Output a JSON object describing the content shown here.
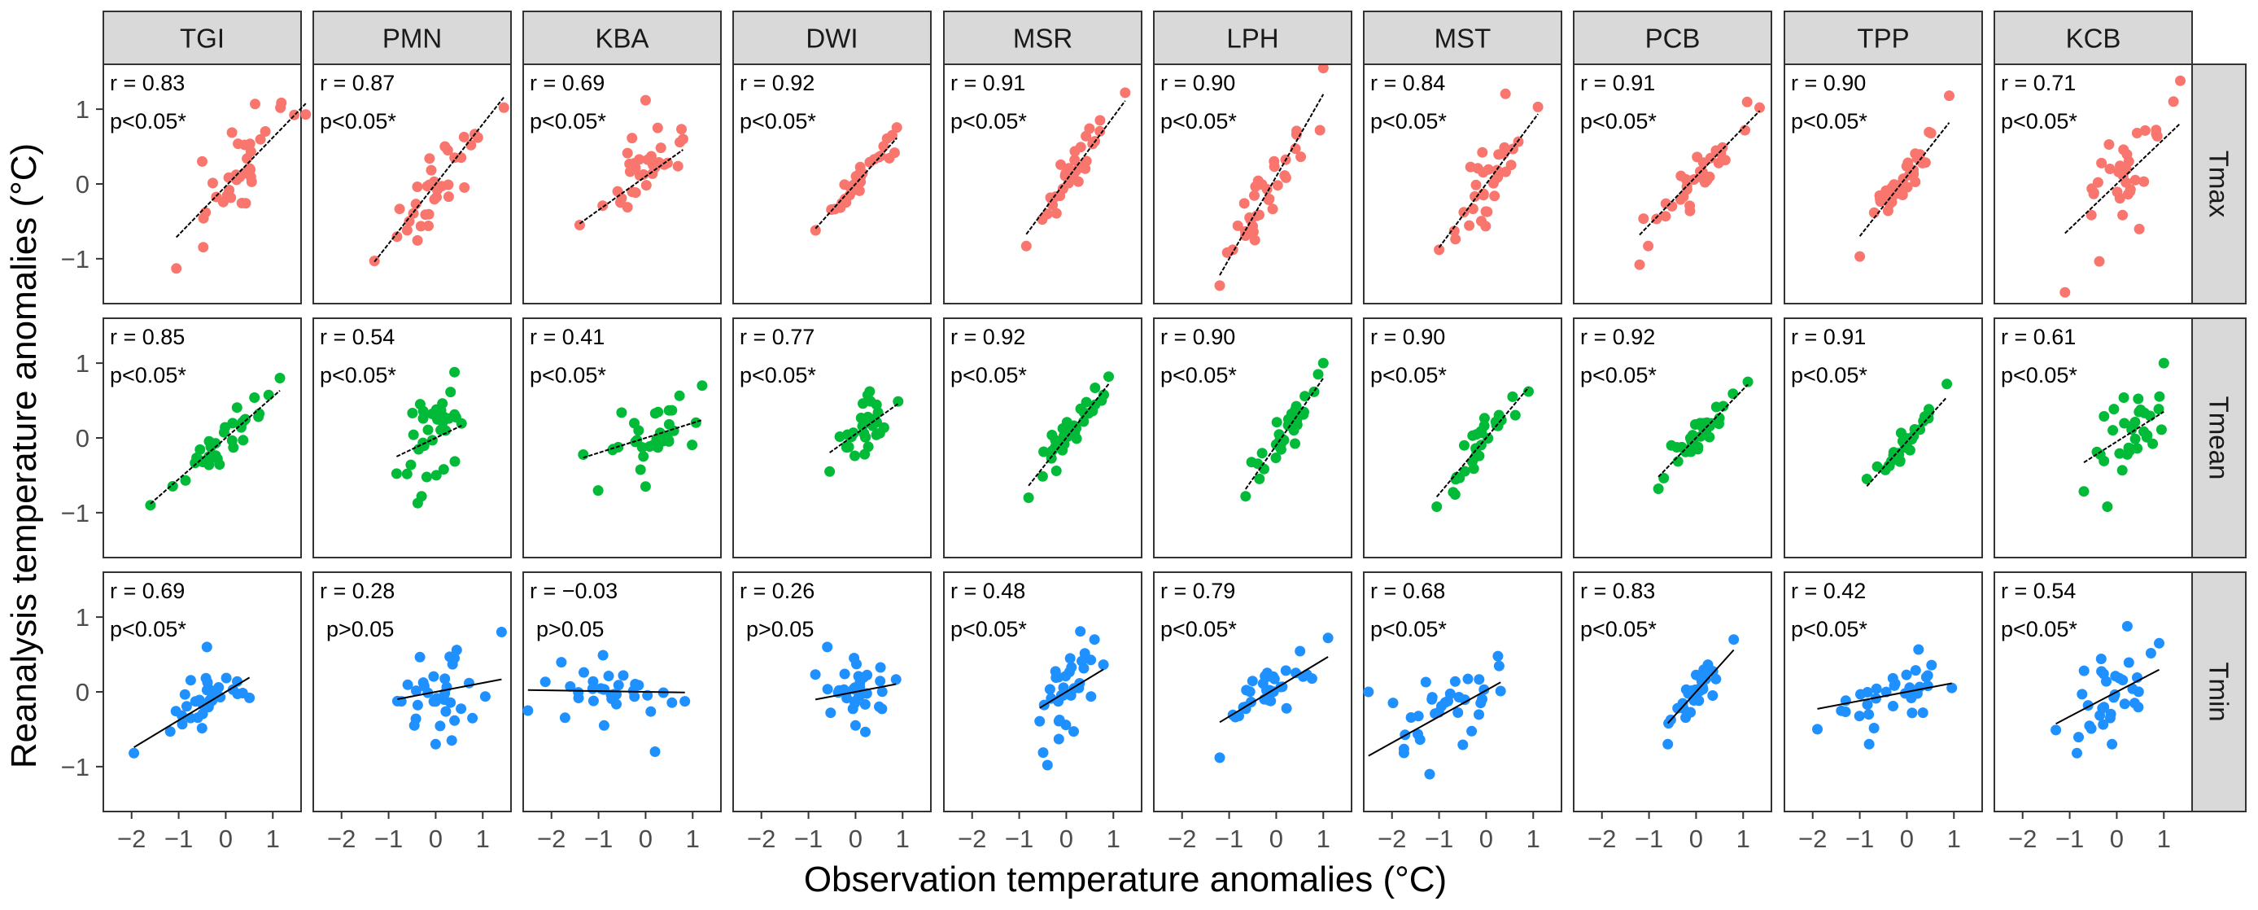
{
  "chart_data": {
    "type": "scatter",
    "title": "",
    "xlabel": "Observation temperature anomalies (°C)",
    "ylabel": "Reanalysis temperature anomalies (°C)",
    "xlim": [
      -2.6,
      1.6
    ],
    "ylim": [
      -1.6,
      1.6
    ],
    "x_ticks": [
      -2,
      -1,
      0,
      1
    ],
    "y_ticks": [
      -1,
      0,
      1
    ],
    "x_tick_labels": [
      "−2",
      "−1",
      "0",
      "1"
    ],
    "y_tick_labels": [
      "−1",
      "0",
      "1"
    ],
    "grid": false,
    "legend": "none",
    "stations": [
      "TGI",
      "PMN",
      "KBA",
      "DWI",
      "MSR",
      "LPH",
      "MST",
      "PCB",
      "TPP",
      "KCB"
    ],
    "variables": [
      {
        "name": "Tmax",
        "color": "#F8766D"
      },
      {
        "name": "Tmean",
        "color": "#00BA38"
      },
      {
        "name": "Tmin",
        "color": "#1E90FF"
      }
    ],
    "panels": [
      [
        {
          "r": "r = 0.83",
          "p": "p<0.05*",
          "x_range": [
            -1.0,
            1.7
          ],
          "slope": 0.65,
          "intercept": -0.03,
          "n": 32,
          "spread": 0.27,
          "seed": 101,
          "extra": [
            [
              -1.05,
              -1.13
            ],
            [
              1.7,
              0.93
            ],
            [
              -0.5,
              0.3
            ]
          ]
        },
        {
          "r": "r = 0.87",
          "p": "p<0.05*",
          "x_range": [
            -1.3,
            1.4
          ],
          "slope": 0.8,
          "intercept": 0.0,
          "n": 32,
          "spread": 0.23,
          "seed": 102,
          "extra": [
            [
              -1.3,
              -1.03
            ],
            [
              1.45,
              1.02
            ]
          ]
        },
        {
          "r": "r = 0.69",
          "p": "p<0.05*",
          "x_range": [
            -1.5,
            1.3
          ],
          "slope": 0.45,
          "intercept": 0.1,
          "n": 32,
          "spread": 0.27,
          "seed": 103,
          "extra": [
            [
              0.0,
              1.12
            ],
            [
              -1.4,
              -0.55
            ]
          ]
        },
        {
          "r": "r = 0.92",
          "p": "p<0.05*",
          "x_range": [
            -0.9,
            1.1
          ],
          "slope": 0.7,
          "intercept": 0.0,
          "n": 32,
          "spread": 0.12,
          "seed": 104,
          "extra": [
            [
              -0.85,
              -0.62
            ]
          ]
        },
        {
          "r": "r = 0.91",
          "p": "p<0.05*",
          "x_range": [
            -0.9,
            1.2
          ],
          "slope": 0.85,
          "intercept": 0.05,
          "n": 32,
          "spread": 0.16,
          "seed": 105,
          "extra": [
            [
              1.25,
              1.22
            ],
            [
              -0.85,
              -0.83
            ]
          ]
        },
        {
          "r": "r = 0.90",
          "p": "p<0.05*",
          "x_range": [
            -1.3,
            1.1
          ],
          "slope": 1.1,
          "intercept": 0.1,
          "n": 32,
          "spread": 0.25,
          "seed": 106,
          "extra": [
            [
              1.0,
              1.55
            ],
            [
              -1.2,
              -1.36
            ]
          ]
        },
        {
          "r": "r = 0.84",
          "p": "p<0.05*",
          "x_range": [
            -1.0,
            1.1
          ],
          "slope": 0.85,
          "intercept": 0.0,
          "n": 32,
          "spread": 0.25,
          "seed": 107,
          "extra": [
            [
              -1.0,
              -0.88
            ],
            [
              1.1,
              1.03
            ]
          ]
        },
        {
          "r": "r = 0.91",
          "p": "p<0.05*",
          "x_range": [
            -1.3,
            1.3
          ],
          "slope": 0.65,
          "intercept": 0.1,
          "n": 32,
          "spread": 0.16,
          "seed": 108,
          "extra": [
            [
              -1.2,
              -1.08
            ],
            [
              1.35,
              1.02
            ]
          ]
        },
        {
          "r": "r = 0.90",
          "p": "p<0.05*",
          "x_range": [
            -1.1,
            1.1
          ],
          "slope": 0.8,
          "intercept": 0.1,
          "n": 32,
          "spread": 0.2,
          "seed": 109,
          "extra": [
            [
              -1.0,
              -0.97
            ],
            [
              0.9,
              1.18
            ]
          ]
        },
        {
          "r": "r = 0.71",
          "p": "p<0.05*",
          "x_range": [
            -1.1,
            1.4
          ],
          "slope": 0.6,
          "intercept": 0.0,
          "n": 32,
          "spread": 0.35,
          "seed": 110,
          "extra": [
            [
              -1.1,
              -1.45
            ],
            [
              1.35,
              1.38
            ]
          ]
        }
      ],
      [
        {
          "r": "r = 0.85",
          "p": "p<0.05*",
          "x_range": [
            -1.5,
            1.2
          ],
          "slope": 0.55,
          "intercept": 0.0,
          "n": 32,
          "spread": 0.14,
          "seed": 201,
          "extra": [
            [
              -1.6,
              -0.9
            ],
            [
              1.15,
              0.8
            ]
          ]
        },
        {
          "r": "r = 0.54",
          "p": "p<0.05*",
          "x_range": [
            -1.2,
            1.3
          ],
          "slope": 0.3,
          "intercept": 0.0,
          "n": 32,
          "spread": 0.28,
          "seed": 202,
          "extra": [
            [
              -0.3,
              -0.78
            ],
            [
              0.4,
              0.88
            ]
          ]
        },
        {
          "r": "r = 0.41",
          "p": "p<0.05*",
          "x_range": [
            -1.5,
            1.4
          ],
          "slope": 0.2,
          "intercept": 0.0,
          "n": 32,
          "spread": 0.22,
          "seed": 203,
          "extra": [
            [
              0.0,
              -0.65
            ],
            [
              1.2,
              0.7
            ]
          ]
        },
        {
          "r": "r = 0.77",
          "p": "p<0.05*",
          "x_range": [
            -0.8,
            1.1
          ],
          "slope": 0.45,
          "intercept": 0.05,
          "n": 32,
          "spread": 0.14,
          "seed": 204,
          "extra": [
            [
              0.3,
              0.62
            ],
            [
              -0.55,
              -0.45
            ]
          ]
        },
        {
          "r": "r = 0.92",
          "p": "p<0.05*",
          "x_range": [
            -0.9,
            1.1
          ],
          "slope": 0.8,
          "intercept": 0.0,
          "n": 32,
          "spread": 0.12,
          "seed": 205,
          "extra": [
            [
              -0.8,
              -0.8
            ],
            [
              0.9,
              0.82
            ]
          ]
        },
        {
          "r": "r = 0.90",
          "p": "p<0.05*",
          "x_range": [
            -0.7,
            1.1
          ],
          "slope": 0.9,
          "intercept": -0.1,
          "n": 36,
          "spread": 0.12,
          "seed": 206,
          "extra": [
            [
              1.0,
              1.0
            ],
            [
              -0.65,
              -0.78
            ]
          ]
        },
        {
          "r": "r = 0.90",
          "p": "p<0.05*",
          "x_range": [
            -1.1,
            1.0
          ],
          "slope": 0.75,
          "intercept": 0.0,
          "n": 32,
          "spread": 0.13,
          "seed": 207,
          "extra": [
            [
              -1.05,
              -0.92
            ],
            [
              0.9,
              0.62
            ]
          ]
        },
        {
          "r": "r = 0.92",
          "p": "p<0.05*",
          "x_range": [
            -0.9,
            1.2
          ],
          "slope": 0.65,
          "intercept": 0.0,
          "n": 32,
          "spread": 0.1,
          "seed": 208,
          "extra": [
            [
              -0.8,
              -0.68
            ],
            [
              1.1,
              0.75
            ]
          ]
        },
        {
          "r": "r = 0.91",
          "p": "p<0.05*",
          "x_range": [
            -0.9,
            0.9
          ],
          "slope": 0.7,
          "intercept": -0.05,
          "n": 32,
          "spread": 0.1,
          "seed": 209,
          "extra": [
            [
              -0.85,
              -0.55
            ],
            [
              0.85,
              0.72
            ]
          ]
        },
        {
          "r": "r = 0.61",
          "p": "p<0.05*",
          "x_range": [
            -0.9,
            1.4
          ],
          "slope": 0.4,
          "intercept": -0.05,
          "n": 32,
          "spread": 0.26,
          "seed": 210,
          "extra": [
            [
              -0.2,
              -0.92
            ],
            [
              1.0,
              1.0
            ]
          ]
        }
      ],
      [
        {
          "r": "r = 0.69",
          "p": "p<0.05*",
          "x_range": [
            -2.0,
            1.0
          ],
          "slope": 0.38,
          "intercept": 0.0,
          "n": 32,
          "spread": 0.18,
          "seed": 301,
          "extra": [
            [
              -1.95,
              -0.82
            ],
            [
              -0.4,
              0.6
            ]
          ]
        },
        {
          "r": "r = 0.28",
          "p": "p>0.05",
          "x_range": [
            -1.6,
            1.4
          ],
          "slope": 0.12,
          "intercept": 0.0,
          "n": 32,
          "spread": 0.28,
          "seed": 302,
          "extra": [
            [
              1.4,
              0.8
            ],
            [
              0.0,
              -0.7
            ]
          ]
        },
        {
          "r": "r = −0.03",
          "p": "p>0.05",
          "x_range": [
            -2.6,
            1.4
          ],
          "slope": -0.01,
          "intercept": 0.0,
          "n": 32,
          "spread": 0.22,
          "seed": 303,
          "extra": [
            [
              -2.5,
              -0.25
            ],
            [
              0.2,
              -0.8
            ]
          ]
        },
        {
          "r": "r = 0.26",
          "p": "p>0.05",
          "x_range": [
            -1.0,
            1.1
          ],
          "slope": 0.12,
          "intercept": 0.0,
          "n": 32,
          "spread": 0.2,
          "seed": 304,
          "extra": [
            [
              -0.6,
              0.6
            ],
            [
              0.0,
              -0.45
            ]
          ]
        },
        {
          "r": "r = 0.48",
          "p": "p<0.05*",
          "x_range": [
            -1.1,
            1.0
          ],
          "slope": 0.38,
          "intercept": 0.0,
          "n": 32,
          "spread": 0.3,
          "seed": 305,
          "extra": [
            [
              -0.4,
              -0.98
            ],
            [
              0.6,
              0.7
            ]
          ]
        },
        {
          "r": "r = 0.79",
          "p": "p<0.05*",
          "x_range": [
            -1.6,
            1.2
          ],
          "slope": 0.38,
          "intercept": 0.05,
          "n": 32,
          "spread": 0.18,
          "seed": 306,
          "extra": [
            [
              -1.2,
              -0.88
            ],
            [
              1.1,
              0.72
            ]
          ]
        },
        {
          "r": "r = 0.68",
          "p": "p<0.05*",
          "x_range": [
            -2.6,
            1.1
          ],
          "slope": 0.35,
          "intercept": 0.02,
          "n": 32,
          "spread": 0.2,
          "seed": 307,
          "extra": [
            [
              -2.5,
              0.0
            ],
            [
              -1.2,
              -1.1
            ]
          ]
        },
        {
          "r": "r = 0.83",
          "p": "p<0.05*",
          "x_range": [
            -0.9,
            0.8
          ],
          "slope": 0.7,
          "intercept": 0.0,
          "n": 32,
          "spread": 0.13,
          "seed": 308,
          "extra": [
            [
              0.8,
              0.7
            ],
            [
              -0.6,
              -0.7
            ]
          ]
        },
        {
          "r": "r = 0.42",
          "p": "p<0.05*",
          "x_range": [
            -1.9,
            1.2
          ],
          "slope": 0.12,
          "intercept": 0.0,
          "n": 32,
          "spread": 0.22,
          "seed": 309,
          "extra": [
            [
              -0.8,
              -0.7
            ],
            [
              -1.9,
              -0.5
            ]
          ]
        },
        {
          "r": "r = 0.54",
          "p": "p<0.05*",
          "x_range": [
            -1.5,
            1.4
          ],
          "slope": 0.33,
          "intercept": 0.0,
          "n": 32,
          "spread": 0.26,
          "seed": 310,
          "extra": [
            [
              -0.1,
              -0.7
            ],
            [
              0.9,
              0.65
            ]
          ]
        }
      ]
    ]
  }
}
